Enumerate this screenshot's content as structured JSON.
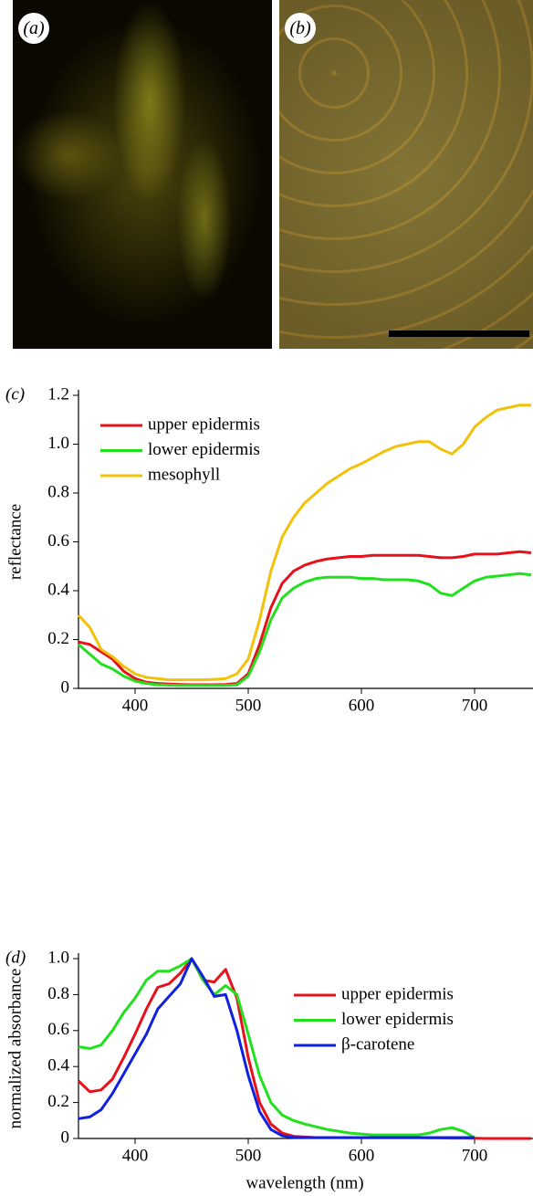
{
  "images": [
    {
      "label": "(a)"
    },
    {
      "label": "(b)"
    }
  ],
  "chart_data": [
    {
      "type": "line",
      "panel_label": "(c)",
      "ylabel": "reflectance",
      "legend": "upper left",
      "grid": false,
      "xlim": [
        350,
        750
      ],
      "xticks": [
        400,
        500,
        600,
        700
      ],
      "ylim": [
        0,
        1.2
      ],
      "yticks": [
        0,
        0.2,
        0.4,
        0.6,
        0.8,
        {
          "value": 1.0,
          "label": "1.0"
        },
        1.2
      ],
      "x": [
        350,
        360,
        370,
        380,
        390,
        400,
        410,
        420,
        430,
        440,
        450,
        460,
        470,
        480,
        490,
        500,
        510,
        520,
        530,
        540,
        550,
        560,
        570,
        580,
        590,
        600,
        610,
        620,
        630,
        640,
        650,
        660,
        670,
        680,
        690,
        700,
        710,
        720,
        730,
        740,
        750
      ],
      "series": [
        {
          "name": "upper epidermis",
          "color": "#e8101a",
          "values": [
            0.19,
            0.18,
            0.15,
            0.12,
            0.07,
            0.04,
            0.025,
            0.02,
            0.018,
            0.016,
            0.015,
            0.015,
            0.015,
            0.016,
            0.02,
            0.06,
            0.18,
            0.33,
            0.43,
            0.48,
            0.505,
            0.52,
            0.53,
            0.535,
            0.54,
            0.54,
            0.545,
            0.545,
            0.545,
            0.545,
            0.545,
            0.54,
            0.535,
            0.535,
            0.54,
            0.55,
            0.55,
            0.55,
            0.555,
            0.56,
            0.555
          ]
        },
        {
          "name": "lower epidermis",
          "color": "#22e01e",
          "values": [
            0.18,
            0.14,
            0.1,
            0.08,
            0.05,
            0.03,
            0.02,
            0.015,
            0.013,
            0.012,
            0.012,
            0.012,
            0.012,
            0.012,
            0.015,
            0.05,
            0.15,
            0.28,
            0.37,
            0.41,
            0.435,
            0.45,
            0.455,
            0.455,
            0.455,
            0.45,
            0.45,
            0.445,
            0.445,
            0.445,
            0.44,
            0.425,
            0.39,
            0.38,
            0.41,
            0.44,
            0.455,
            0.46,
            0.465,
            0.47,
            0.465
          ]
        },
        {
          "name": "mesophyll",
          "color": "#f2c20a",
          "values": [
            0.3,
            0.25,
            0.16,
            0.13,
            0.09,
            0.06,
            0.045,
            0.04,
            0.035,
            0.035,
            0.035,
            0.035,
            0.037,
            0.04,
            0.06,
            0.12,
            0.28,
            0.48,
            0.62,
            0.7,
            0.76,
            0.8,
            0.84,
            0.87,
            0.9,
            0.92,
            0.945,
            0.97,
            0.99,
            1.0,
            1.01,
            1.01,
            0.98,
            0.96,
            1.0,
            1.07,
            1.11,
            1.14,
            1.15,
            1.16,
            1.16
          ]
        }
      ]
    },
    {
      "type": "line",
      "panel_label": "(d)",
      "ylabel": "normalized absorbance",
      "xlabel": "wavelength (nm)",
      "legend": "upper right",
      "grid": false,
      "xlim": [
        350,
        750
      ],
      "xticks": [
        400,
        500,
        600,
        700
      ],
      "ylim": [
        0,
        1.0
      ],
      "yticks": [
        0,
        0.2,
        0.4,
        0.6,
        0.8,
        {
          "value": 1.0,
          "label": "1.0"
        }
      ],
      "x": [
        350,
        360,
        370,
        380,
        390,
        400,
        410,
        420,
        430,
        440,
        450,
        460,
        470,
        480,
        490,
        500,
        510,
        520,
        530,
        540,
        550,
        560,
        570,
        580,
        590,
        600,
        610,
        620,
        630,
        640,
        650,
        660,
        670,
        680,
        690,
        700,
        710,
        720,
        730,
        740,
        750
      ],
      "series": [
        {
          "name": "upper epidermis",
          "color": "#e8101a",
          "values": [
            0.32,
            0.26,
            0.27,
            0.33,
            0.45,
            0.58,
            0.72,
            0.84,
            0.86,
            0.92,
            1.0,
            0.88,
            0.87,
            0.94,
            0.78,
            0.45,
            0.2,
            0.08,
            0.03,
            0.012,
            0.008,
            0.005,
            0.005,
            0.005,
            0.005,
            0.005,
            0.005,
            0.005,
            0.005,
            0.005,
            0.005,
            0.004,
            0.003,
            0.002,
            0.002,
            0.001,
            0,
            0,
            0,
            0,
            0
          ]
        },
        {
          "name": "lower epidermis",
          "color": "#22e01e",
          "values": [
            0.51,
            0.5,
            0.52,
            0.6,
            0.7,
            0.78,
            0.88,
            0.93,
            0.93,
            0.96,
            1.0,
            0.88,
            0.8,
            0.85,
            0.8,
            0.58,
            0.35,
            0.2,
            0.13,
            0.1,
            0.08,
            0.065,
            0.05,
            0.04,
            0.03,
            0.025,
            0.02,
            0.02,
            0.02,
            0.02,
            0.02,
            0.03,
            0.05,
            0.06,
            0.04,
            0.005,
            null,
            null,
            null,
            null,
            null
          ]
        },
        {
          "name": "β-carotene",
          "color": "#1020e0",
          "values": [
            0.11,
            0.12,
            0.16,
            0.25,
            0.36,
            0.47,
            0.58,
            0.72,
            0.79,
            0.86,
            1.0,
            0.9,
            0.79,
            0.8,
            0.6,
            0.35,
            0.15,
            0.05,
            0.015,
            0.005,
            0.005,
            0.005,
            0.005,
            0.005,
            0.005,
            0.005,
            0.005,
            0.005,
            0.005,
            0.005,
            0.005,
            0.005,
            0.005,
            0.005,
            0.005,
            0.005,
            null,
            null,
            null,
            null,
            null
          ]
        }
      ]
    }
  ]
}
